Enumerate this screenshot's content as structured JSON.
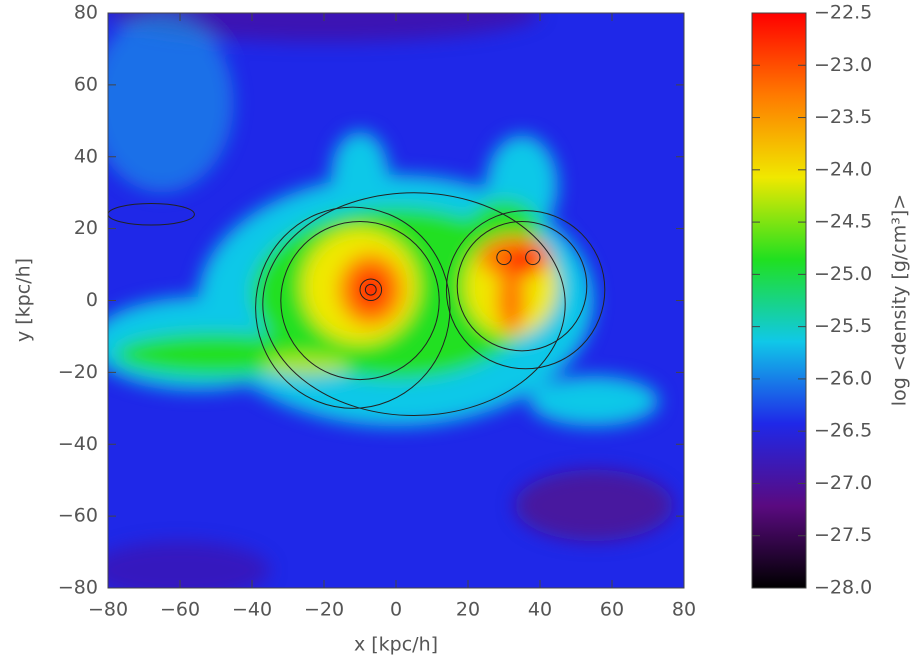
{
  "chart_data": {
    "type": "heatmap",
    "xlabel": "x [kpc/h]",
    "ylabel": "y [kpc/h]",
    "xlim": [
      -80,
      80
    ],
    "ylim": [
      -80,
      80
    ],
    "xticks": [
      {
        "value": -80,
        "label": "−80"
      },
      {
        "value": -60,
        "label": "−60"
      },
      {
        "value": -40,
        "label": "−40"
      },
      {
        "value": -20,
        "label": "−20"
      },
      0,
      20,
      40,
      60,
      80
    ],
    "yticks": [
      {
        "value": -80,
        "label": "−80"
      },
      {
        "value": -60,
        "label": "−60"
      },
      {
        "value": -40,
        "label": "−40"
      },
      {
        "value": -20,
        "label": "−20"
      },
      0,
      20,
      40,
      60,
      80
    ],
    "colorbar_label": "log <density [g/cm³]>",
    "clim": [
      -28.0,
      -22.5
    ],
    "cticks": [
      {
        "value": -22.5,
        "label": "−22.5"
      },
      {
        "value": -23.0,
        "label": "−23.0"
      },
      {
        "value": -23.5,
        "label": "−23.5"
      },
      {
        "value": -24.0,
        "label": "−24.0"
      },
      {
        "value": -24.5,
        "label": "−24.5"
      },
      {
        "value": -25.0,
        "label": "−25.0"
      },
      {
        "value": -25.5,
        "label": "−25.5"
      },
      {
        "value": -26.0,
        "label": "−26.0"
      },
      {
        "value": -26.5,
        "label": "−26.5"
      },
      {
        "value": -27.0,
        "label": "−27.0"
      },
      {
        "value": -27.5,
        "label": "−27.5"
      },
      {
        "value": -28.0,
        "label": "−28.0"
      }
    ],
    "colormap": [
      "#000000",
      "#5a0a80",
      "#1f28e8",
      "#10c8e8",
      "#20e020",
      "#f0e800",
      "#ff7a00",
      "#ff0000"
    ]
  }
}
